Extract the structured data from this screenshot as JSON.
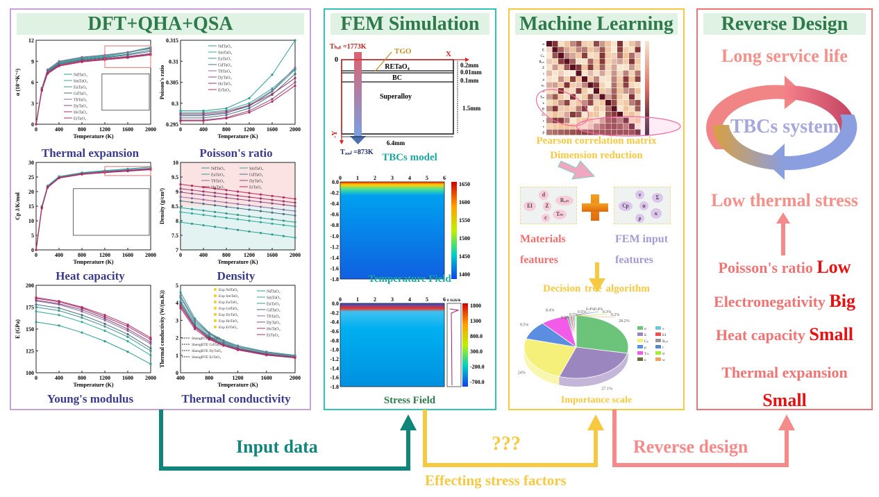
{
  "panels": {
    "dft": {
      "title": "DFT+QHA+QSA",
      "captions": [
        "Thermal expansion",
        "Poisson's ratio",
        "Heat capacity",
        "Density",
        "Young's modulus",
        "Thermal conductivity"
      ]
    },
    "fem": {
      "title": "FEM Simulation",
      "model": {
        "t_hot": "Tₕₒₜ =1773K",
        "t_cool": "Tₔₒₒₗ =873K",
        "tgo": "TGO",
        "x_axis": "X",
        "y_axis": "-Y",
        "origin": "0",
        "layer_top": "RETaO₄",
        "layer_bc": "BC",
        "layer_sub": "Superalloy",
        "dim_top": "0.2mm",
        "dim_tgo": "0.01mm",
        "dim_bc": "0.1mm",
        "dim_sub": "1.5mm",
        "dim_width": "6.4mm",
        "caption": "TBCs model"
      },
      "temperature": {
        "caption": "Temperature Field",
        "x_ticks": [
          "0",
          "1",
          "2",
          "3",
          "4",
          "5",
          "6"
        ],
        "y_ticks": [
          "0.0",
          "-0.2",
          "-0.4",
          "-0.6",
          "-0.8",
          "-1.0",
          "-1.2",
          "-1.4",
          "-1.6",
          "-1.8"
        ],
        "colorbar": [
          "1650",
          "1600",
          "1550",
          "1500",
          "1450",
          "1400"
        ]
      },
      "stress": {
        "caption": "Stress Field",
        "x_ticks": [
          "0",
          "1",
          "2",
          "3",
          "4",
          "5",
          "6"
        ],
        "y_ticks": [
          "0.0",
          "-0.2",
          "-0.4",
          "-0.6",
          "-0.8",
          "-1.0",
          "-1.2",
          "-1.4",
          "-1.6",
          "-1.8"
        ],
        "colorbar": [
          "1800",
          "1300",
          "800.0",
          "300.0",
          "-200.0",
          "-700.0"
        ],
        "inset_ticks": "0 1k2k3k"
      }
    },
    "ml": {
      "title": "Machine Learning",
      "matrix_caption": "Pearson correlation matrix",
      "matrix_labels": [
        "α",
        "E",
        "Cₚ",
        "Rᵢₒₙ",
        "Z",
        "r",
        "ρ",
        "eₗₑ",
        "d",
        "Tₘ",
        "κ",
        "B",
        "G",
        "c",
        "ν",
        "β"
      ],
      "reduction": "Dimension reduction",
      "materials_features": {
        "label": "Materials features",
        "items": [
          "d",
          "EI",
          "Z",
          "Rᵢₒₙ",
          "Tₘ",
          "c"
        ]
      },
      "plus": "+",
      "fem_features": {
        "label": "FEM input features",
        "items": [
          "ν",
          "Cp",
          "α",
          "Σ",
          "ρ",
          "κ"
        ]
      },
      "algorithm": "Decision tree algorithm",
      "importance_caption": "Importance scale"
    },
    "reverse": {
      "title": "Reverse Design",
      "long_life": "Long service life",
      "system": "TBCs system",
      "low_stress": "Low thermal stress",
      "rules": [
        {
          "property": "Poisson's ratio",
          "value": "Low"
        },
        {
          "property": "Electronegativity",
          "value": "Big"
        },
        {
          "property": "Heat capacity",
          "value": "Small"
        },
        {
          "property": "Thermal expansion",
          "value": "Small"
        }
      ]
    }
  },
  "flows": {
    "input_data": "Input data",
    "unknown": "???",
    "stress_factors": "Effecting stress factors",
    "reverse_design": "Reverse design"
  },
  "colors": {
    "dft": "#c6a2dc",
    "fem": "#2ec4b6",
    "ml": "#f7c940",
    "reverse": "#f07474",
    "teal_arrow": "#12857a",
    "gold_arrow": "#f7c940",
    "pink_arrow": "#f58a8a"
  },
  "chart_data": [
    {
      "type": "line",
      "id": "thermal_expansion",
      "xlabel": "Temperature (K)",
      "ylabel": "α (10⁻⁶K⁻¹)",
      "xlim": [
        0,
        2000
      ],
      "ylim": [
        0,
        12
      ],
      "x_ticks": [
        0,
        400,
        800,
        1200,
        1600,
        2000
      ],
      "y_ticks": [
        0,
        3,
        6,
        9,
        12
      ],
      "x": [
        0,
        100,
        200,
        400,
        800,
        1200,
        1600,
        2000
      ],
      "series": [
        {
          "name": "NdTaO₄",
          "values": [
            0,
            5.2,
            7.8,
            8.9,
            9.5,
            9.8,
            10.3,
            11.0
          ]
        },
        {
          "name": "SmTaO₄",
          "values": [
            0,
            5.1,
            7.7,
            8.8,
            9.4,
            9.7,
            10.2,
            10.9
          ]
        },
        {
          "name": "EuTaO₄",
          "values": [
            0,
            5.0,
            7.6,
            8.7,
            9.3,
            9.6,
            10.0,
            10.6
          ]
        },
        {
          "name": "GdTaO₄",
          "values": [
            0,
            5.0,
            7.5,
            8.6,
            9.2,
            9.5,
            9.9,
            10.4
          ]
        },
        {
          "name": "TbTaO₄",
          "values": [
            0,
            5.1,
            7.8,
            9.0,
            9.6,
            9.9,
            10.3,
            10.8
          ]
        },
        {
          "name": "DyTaO₄",
          "values": [
            0,
            4.9,
            7.4,
            8.5,
            9.1,
            9.4,
            9.7,
            10.1
          ]
        },
        {
          "name": "HoTaO₄",
          "values": [
            0,
            4.9,
            7.3,
            8.4,
            9.0,
            9.3,
            9.6,
            10.0
          ]
        },
        {
          "name": "ErTaO₄",
          "values": [
            0,
            4.8,
            7.2,
            8.3,
            8.9,
            9.2,
            9.5,
            9.9
          ]
        }
      ]
    },
    {
      "type": "line",
      "id": "poisson",
      "xlabel": "Temperature (K)",
      "ylabel": "Poisson's ratio",
      "xlim": [
        0,
        2000
      ],
      "ylim": [
        0.295,
        0.315
      ],
      "x_ticks": [
        0,
        400,
        800,
        1200,
        1600,
        2000
      ],
      "y_ticks": [
        0.295,
        0.3,
        0.305,
        0.31,
        0.315
      ],
      "x": [
        0,
        400,
        800,
        1200,
        1600,
        2000
      ],
      "series": [
        {
          "name": "NdTaO₄",
          "values": [
            0.2982,
            0.2982,
            0.2988,
            0.3012,
            0.3068,
            0.315
          ]
        },
        {
          "name": "SmTaO₄",
          "values": [
            0.2978,
            0.2978,
            0.2983,
            0.3,
            0.3035,
            0.3082
          ]
        },
        {
          "name": "EuTaO₄",
          "values": [
            0.2972,
            0.2972,
            0.2977,
            0.2993,
            0.3028,
            0.308
          ]
        },
        {
          "name": "GdTaO₄",
          "values": [
            0.2965,
            0.2965,
            0.2972,
            0.2988,
            0.302,
            0.307
          ]
        },
        {
          "name": "TbTaO₄",
          "values": [
            0.297,
            0.297,
            0.2976,
            0.2996,
            0.303,
            0.3085
          ]
        },
        {
          "name": "DyTaO₄",
          "values": [
            0.296,
            0.296,
            0.2966,
            0.2982,
            0.301,
            0.305
          ]
        },
        {
          "name": "HoTaO₄",
          "values": [
            0.2975,
            0.2975,
            0.298,
            0.2995,
            0.3022,
            0.306
          ]
        },
        {
          "name": "ErTaO₄",
          "values": [
            0.2958,
            0.2958,
            0.2964,
            0.2978,
            0.3004,
            0.3042
          ]
        }
      ]
    },
    {
      "type": "line",
      "id": "heat_capacity",
      "xlabel": "Temperature (K)",
      "ylabel": "Cp J/K/mol",
      "xlim": [
        0,
        2000
      ],
      "ylim": [
        0,
        30
      ],
      "x_ticks": [
        0,
        400,
        800,
        1200,
        1600,
        2000
      ],
      "y_ticks": [
        0,
        5,
        10,
        15,
        20,
        25,
        30
      ],
      "x": [
        0,
        100,
        200,
        400,
        800,
        1200,
        1600,
        2000
      ],
      "series": [
        {
          "name": "NdTaO₄",
          "values": [
            0,
            15,
            22,
            25.2,
            26.5,
            27.2,
            27.8,
            28.4
          ]
        },
        {
          "name": "SmTaO₄",
          "values": [
            0,
            14.8,
            21.8,
            25.0,
            26.3,
            27.0,
            27.5,
            28.0
          ]
        },
        {
          "name": "EuTaO₄",
          "values": [
            0,
            14.6,
            21.6,
            24.9,
            26.2,
            26.9,
            27.4,
            27.9
          ]
        },
        {
          "name": "GdTaO₄",
          "values": [
            0,
            14.5,
            21.5,
            24.8,
            26.1,
            26.8,
            27.3,
            27.8
          ]
        },
        {
          "name": "TbTaO₄",
          "values": [
            0,
            14.7,
            21.7,
            24.9,
            26.2,
            26.9,
            27.4,
            27.9
          ]
        },
        {
          "name": "DyTaO₄",
          "values": [
            0,
            14.5,
            21.5,
            24.8,
            26.1,
            26.7,
            27.2,
            27.7
          ]
        },
        {
          "name": "HoTaO₄",
          "values": [
            0,
            14.4,
            21.4,
            24.7,
            26.0,
            26.6,
            27.1,
            27.6
          ]
        },
        {
          "name": "ErTaO₄",
          "values": [
            0,
            14.3,
            21.3,
            24.6,
            25.9,
            26.5,
            27.0,
            27.5
          ]
        }
      ]
    },
    {
      "type": "line",
      "id": "density",
      "xlabel": "Temperature (K)",
      "ylabel": "Density (g/cm³)",
      "xlim": [
        0,
        2000
      ],
      "ylim": [
        7.0,
        10.0
      ],
      "x_ticks": [
        0,
        400,
        800,
        1200,
        1600,
        2000
      ],
      "y_ticks": [
        7.0,
        7.5,
        8.0,
        8.5,
        9.0,
        9.5,
        10.0
      ],
      "x": [
        0,
        2000
      ],
      "series": [
        {
          "name": "NdTaO₄",
          "values": [
            7.95,
            7.42
          ]
        },
        {
          "name": "SmTaO₄",
          "values": [
            8.3,
            7.8
          ]
        },
        {
          "name": "EuTaO₄",
          "values": [
            8.45,
            7.95
          ]
        },
        {
          "name": "GdTaO₄",
          "values": [
            8.68,
            8.18
          ]
        },
        {
          "name": "TbTaO₄",
          "values": [
            8.82,
            8.33
          ]
        },
        {
          "name": "DyTaO₄",
          "values": [
            8.98,
            8.5
          ]
        },
        {
          "name": "HoTaO₄",
          "values": [
            9.1,
            8.62
          ]
        },
        {
          "name": "ErTaO₄",
          "values": [
            9.25,
            8.75
          ]
        }
      ]
    },
    {
      "type": "line",
      "id": "youngs_modulus",
      "xlabel": "Temperature (K)",
      "ylabel": "E (GPa)",
      "xlim": [
        0,
        2000
      ],
      "ylim": [
        100,
        200
      ],
      "x_ticks": [
        0,
        400,
        800,
        1200,
        1600,
        2000
      ],
      "y_ticks": [
        100,
        125,
        150,
        175,
        200
      ],
      "x": [
        0,
        400,
        800,
        1200,
        1600,
        2000
      ],
      "series": [
        {
          "name": "NdTaO₄",
          "values": [
            158,
            154,
            146,
            136,
            124,
            110
          ]
        },
        {
          "name": "SmTaO₄",
          "values": [
            170,
            166,
            158,
            148,
            136,
            120
          ]
        },
        {
          "name": "EuTaO₄",
          "values": [
            175,
            171,
            163,
            153,
            141,
            125
          ]
        },
        {
          "name": "GdTaO₄",
          "values": [
            178,
            174,
            166,
            156,
            144,
            128
          ]
        },
        {
          "name": "TbTaO₄",
          "values": [
            182,
            178,
            170,
            160,
            148,
            133
          ]
        },
        {
          "name": "DyTaO₄",
          "values": [
            183,
            179,
            172,
            162,
            150,
            135
          ]
        },
        {
          "name": "HoTaO₄",
          "values": [
            185,
            181,
            174,
            164,
            153,
            138
          ]
        },
        {
          "name": "ErTaO₄",
          "values": [
            186,
            182,
            175,
            166,
            155,
            140
          ]
        }
      ]
    },
    {
      "type": "line",
      "id": "thermal_conductivity",
      "xlabel": "Temperature (K)",
      "ylabel": "Thermal conductivity (W/(m.K))",
      "xlim": [
        400,
        2000
      ],
      "ylim": [
        0,
        5
      ],
      "x_ticks": [
        400,
        800,
        1200,
        1600,
        2000
      ],
      "y_ticks": [
        0,
        1,
        2,
        3,
        4,
        5
      ],
      "x": [
        400,
        600,
        800,
        1000,
        1200,
        1600,
        2000
      ],
      "series": [
        {
          "name": "NdTaO₄",
          "values": [
            4.6,
            3.1,
            2.3,
            1.85,
            1.55,
            1.2,
            1.0
          ]
        },
        {
          "name": "SmTaO₄",
          "values": [
            4.3,
            2.9,
            2.2,
            1.75,
            1.48,
            1.15,
            0.95
          ]
        },
        {
          "name": "EuTaO₄",
          "values": [
            4.1,
            2.8,
            2.1,
            1.7,
            1.42,
            1.1,
            0.92
          ]
        },
        {
          "name": "GdTaO₄",
          "values": [
            4.0,
            2.7,
            2.05,
            1.65,
            1.4,
            1.08,
            0.9
          ]
        },
        {
          "name": "TbTaO₄",
          "values": [
            4.4,
            3.0,
            2.25,
            1.8,
            1.5,
            1.16,
            0.96
          ]
        },
        {
          "name": "DyTaO₄",
          "values": [
            3.9,
            2.65,
            2.0,
            1.6,
            1.36,
            1.05,
            0.88
          ]
        },
        {
          "name": "HoTaO₄",
          "values": [
            3.8,
            2.6,
            1.95,
            1.58,
            1.33,
            1.03,
            0.86
          ]
        },
        {
          "name": "ErTaO₄",
          "values": [
            3.7,
            2.5,
            1.9,
            1.55,
            1.3,
            1.0,
            0.85
          ]
        }
      ],
      "exp_legend": [
        "Exp NdTaO₄",
        "Exp SmTaO₄",
        "Exp EuTaO₄",
        "Exp GdTaO₄",
        "Exp DyTaO₄",
        "Exp HoTaO₄",
        "Exp ErTaO₄"
      ],
      "sheng_legend": [
        "ShengBTE EuTaO₄",
        "ShengBTE GdTaO₄",
        "ShengBTE DyTaO₄",
        "ShengBTE ErTaO₄"
      ]
    },
    {
      "type": "pie",
      "id": "importance",
      "title": "Importance scale",
      "labels": [
        "α",
        "E",
        "Cₚ",
        "ρ",
        "Tₘ",
        "κ",
        "ν",
        "EI",
        "Rᵢₒₙ",
        "r",
        "d",
        "w"
      ],
      "values": [
        28.2,
        27.1,
        24.0,
        9.5,
        8.4,
        0.5,
        0.5,
        0.5,
        0.4,
        0.4,
        0.3,
        0.2
      ],
      "value_labels": [
        "28.2%",
        "27.1%",
        "24%",
        "9.5%",
        "8.4%",
        "0.5%",
        "0.5%",
        "0.5%",
        "0.4%",
        "0.4%",
        "0.3%",
        "0.2%"
      ],
      "colors": [
        "#6cc47a",
        "#9b86c0",
        "#f5f07a",
        "#5b8ee0",
        "#f25ae8",
        "#6b6b3a",
        "#6ec8d8",
        "#f05050",
        "#999999",
        "#5a8ac0",
        "#a0f030",
        "#f0a060"
      ]
    }
  ]
}
